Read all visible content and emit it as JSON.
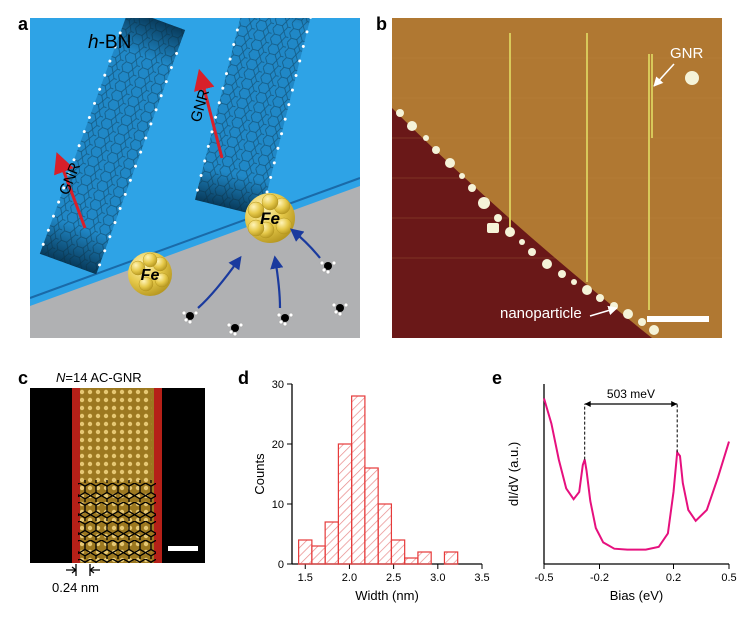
{
  "panel_a": {
    "label": "a",
    "substrate_label": "h-BN",
    "substrate_label_style": "italic-h",
    "ribbon_label": "GNR",
    "particle_label": "Fe",
    "bg_top_color": "#2ea3e6",
    "bg_bottom_color": "#b0b1b3",
    "ribbon_color": "#2088c7",
    "particle_color": "#e6c94a",
    "arrow_growth_color": "#d8202a",
    "arrow_feed_color": "#1a3a9e",
    "label_fontsize": 18
  },
  "panel_b": {
    "label": "b",
    "annotation_gnr": "GNR",
    "annotation_np": "nanoparticle",
    "bg_top_color": "#b07832",
    "bg_bottom_color": "#6a1818",
    "ribbon_color": "#d8c85a",
    "particle_color": "#f5f3d8",
    "scalebar_color": "#ffffff",
    "annotation_color": "#ffffff",
    "annotation_fontsize": 14
  },
  "panel_c": {
    "label": "c",
    "title": "N=14 AC-GNR",
    "title_style": "italic-N",
    "spacing_label": "0.24 nm",
    "bg_color": "#000000",
    "ribbon_face_color": "#cfa648",
    "ribbon_edge_color": "#b52018",
    "lattice_color": "#000000",
    "scalebar_color": "#ffffff",
    "title_fontsize": 13,
    "caption_fontsize": 12
  },
  "panel_d": {
    "label": "d",
    "type": "histogram",
    "xlabel": "Width (nm)",
    "ylabel": "Counts",
    "xlim": [
      1.35,
      3.5
    ],
    "ylim": [
      0,
      30
    ],
    "xticks": [
      1.5,
      2.0,
      2.5,
      3.0,
      3.5
    ],
    "yticks": [
      0,
      10,
      20,
      30
    ],
    "bin_width": 0.15,
    "bins": [
      {
        "x": 1.5,
        "count": 4
      },
      {
        "x": 1.65,
        "count": 3
      },
      {
        "x": 1.8,
        "count": 7
      },
      {
        "x": 1.95,
        "count": 20
      },
      {
        "x": 2.1,
        "count": 28
      },
      {
        "x": 2.25,
        "count": 16
      },
      {
        "x": 2.4,
        "count": 10
      },
      {
        "x": 2.55,
        "count": 4
      },
      {
        "x": 2.7,
        "count": 1
      },
      {
        "x": 2.85,
        "count": 2
      },
      {
        "x": 3.0,
        "count": 0
      },
      {
        "x": 3.15,
        "count": 2
      }
    ],
    "bar_edge_color": "#e63a3a",
    "bar_fill_color": "#ffffff",
    "hatch_color": "#e88a8a",
    "axis_color": "#000000",
    "label_fontsize": 13,
    "tick_fontsize": 11
  },
  "panel_e": {
    "label": "e",
    "type": "line",
    "xlabel": "Bias (eV)",
    "ylabel": "dI/dV (a.u.)",
    "xlim": [
      -0.5,
      0.5
    ],
    "ylim": [
      0,
      1.0
    ],
    "xticks": [
      -0.5,
      -0.2,
      0.2,
      0.5
    ],
    "gap_annotation": "503 meV",
    "peak_left_x": -0.28,
    "peak_right_x": 0.22,
    "line_color": "#e6107e",
    "marker_color": "#000000",
    "axis_color": "#000000",
    "label_fontsize": 13,
    "tick_fontsize": 11,
    "curve": [
      [
        -0.5,
        0.92
      ],
      [
        -0.46,
        0.78
      ],
      [
        -0.42,
        0.58
      ],
      [
        -0.38,
        0.42
      ],
      [
        -0.34,
        0.36
      ],
      [
        -0.31,
        0.4
      ],
      [
        -0.29,
        0.55
      ],
      [
        -0.28,
        0.58
      ],
      [
        -0.27,
        0.52
      ],
      [
        -0.25,
        0.35
      ],
      [
        -0.22,
        0.2
      ],
      [
        -0.18,
        0.12
      ],
      [
        -0.12,
        0.085
      ],
      [
        -0.05,
        0.08
      ],
      [
        0.05,
        0.08
      ],
      [
        0.12,
        0.095
      ],
      [
        0.17,
        0.17
      ],
      [
        0.2,
        0.4
      ],
      [
        0.22,
        0.62
      ],
      [
        0.235,
        0.6
      ],
      [
        0.25,
        0.45
      ],
      [
        0.28,
        0.3
      ],
      [
        0.32,
        0.24
      ],
      [
        0.38,
        0.3
      ],
      [
        0.44,
        0.48
      ],
      [
        0.5,
        0.68
      ]
    ]
  }
}
